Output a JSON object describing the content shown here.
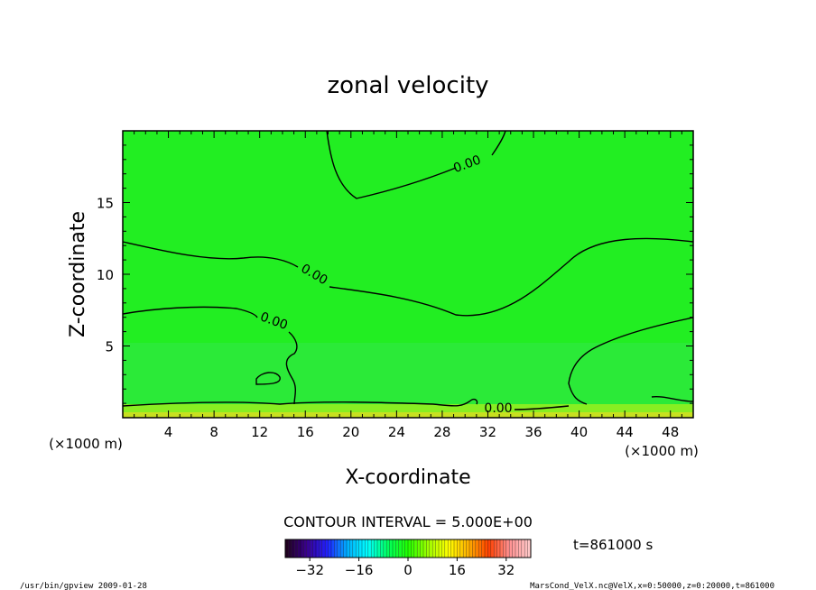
{
  "chart_data": {
    "type": "heatmap",
    "title": "zonal velocity",
    "xlabel": "X-coordinate",
    "ylabel": "Z-coordinate",
    "x_unit_label": "(×1000 m)",
    "y_unit_label": "(×1000 m)",
    "xlim": [
      0,
      50
    ],
    "ylim": [
      0,
      20
    ],
    "x_ticks": [
      4,
      8,
      12,
      16,
      20,
      24,
      28,
      32,
      36,
      40,
      44,
      48
    ],
    "y_ticks": [
      5,
      10,
      15
    ],
    "contour_interval_text": "CONTOUR INTERVAL = 5.000E+00",
    "contour_label": "0.00",
    "time_text": "t=861000 s",
    "colorbar": {
      "range": [
        -40,
        40
      ],
      "ticks": [
        -32,
        -16,
        0,
        16,
        32
      ],
      "colors": [
        "#200020",
        "#3a0090",
        "#2020ff",
        "#00b0ff",
        "#00ffff",
        "#00ff60",
        "#20ff00",
        "#a0ff00",
        "#ffff00",
        "#ffb000",
        "#ff4000",
        "#ff9090",
        "#ffc8c8"
      ]
    },
    "field_color": "#22ee22",
    "footer_left": "/usr/bin/gpview   2009-01-28",
    "footer_right": "MarsCond_VelX.nc@VelX,x=0:50000,z=0:20000,t=861000"
  }
}
